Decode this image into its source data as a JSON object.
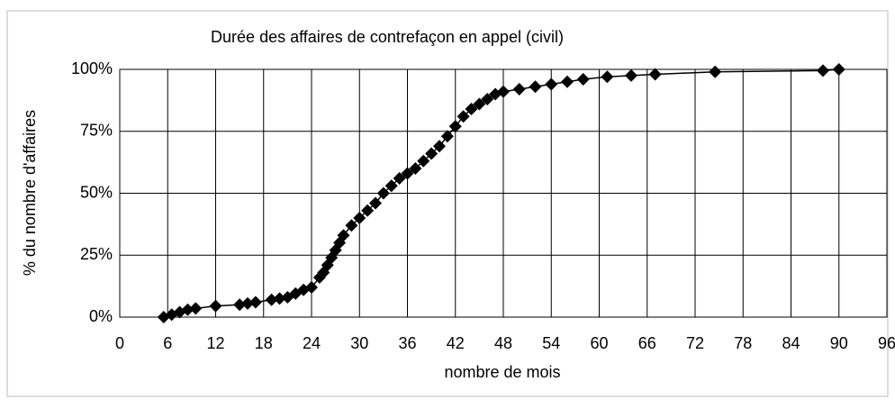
{
  "chart_data": {
    "type": "line",
    "title": "Durée des affaires de contrefaçon en appel (civil)",
    "x_label": "nombre de mois",
    "y_label": "% du nombre d'affaires",
    "x": [
      5.5,
      6.5,
      7.5,
      8.5,
      9.5,
      12,
      15,
      16,
      17,
      19,
      20,
      21,
      22,
      23,
      24,
      25,
      25.5,
      26,
      26.5,
      27,
      27.5,
      28,
      29,
      30,
      31,
      32,
      33,
      34,
      35,
      36,
      37,
      38,
      39,
      40,
      41,
      42,
      43,
      44,
      45,
      46,
      47,
      48,
      50,
      52,
      54,
      56,
      58,
      61,
      64,
      67,
      74.5,
      88,
      90
    ],
    "values": [
      0,
      1,
      2,
      3,
      3.5,
      4.5,
      5,
      5.5,
      6,
      7,
      7.5,
      8,
      9.5,
      11,
      12,
      16,
      18,
      21,
      24,
      27,
      30,
      33,
      37,
      40,
      43,
      46,
      50,
      53,
      56,
      58,
      60,
      63,
      66,
      69,
      73,
      77,
      81,
      84,
      86,
      88,
      90,
      91,
      92,
      93,
      94,
      95,
      96,
      97,
      97.5,
      98,
      99,
      99.5,
      100
    ],
    "color": "#000000",
    "xlim": [
      0,
      96
    ],
    "xticks": [
      0,
      6,
      12,
      18,
      24,
      30,
      36,
      42,
      48,
      54,
      60,
      66,
      72,
      78,
      84,
      90,
      96
    ],
    "ylim": [
      0,
      100
    ],
    "yticks": [
      {
        "value": 0,
        "label": "0%"
      },
      {
        "value": 25,
        "label": "25%"
      },
      {
        "value": 50,
        "label": "50%"
      },
      {
        "value": 75,
        "label": "75%"
      },
      {
        "value": 100,
        "label": "100%"
      }
    ],
    "grid": true
  }
}
